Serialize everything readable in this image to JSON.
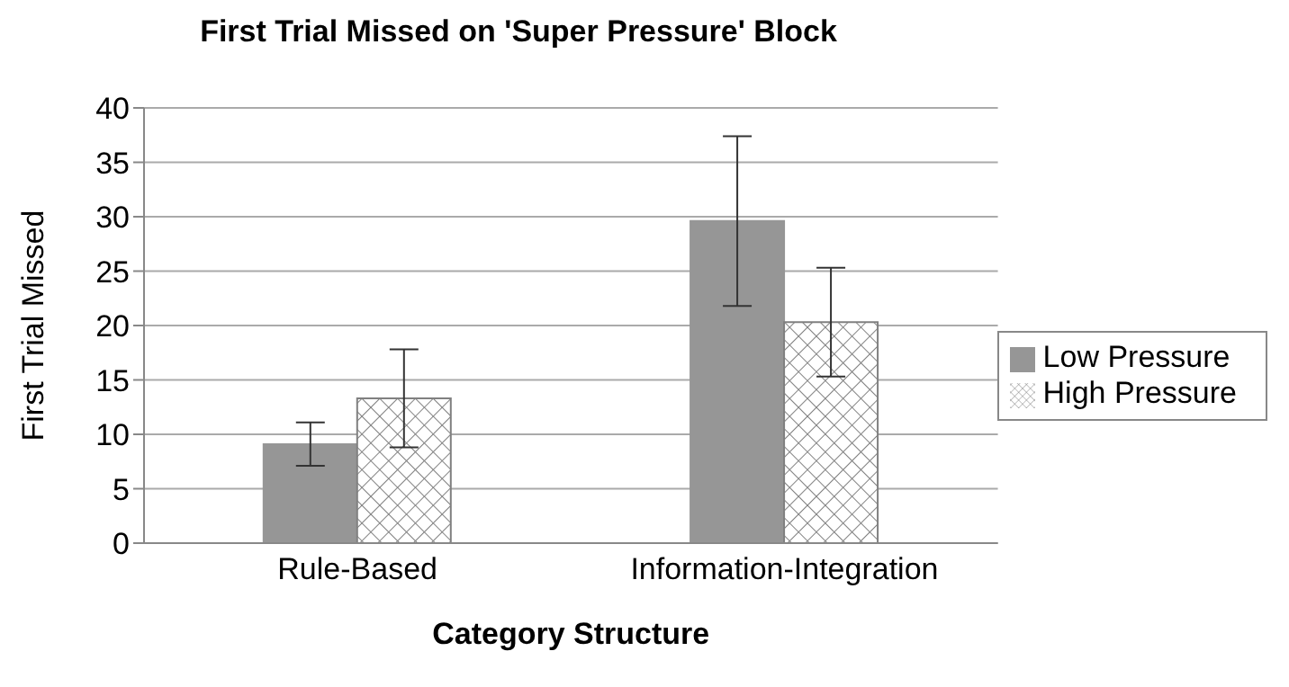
{
  "chart_data": {
    "type": "bar",
    "title": "First Trial Missed on 'Super Pressure' Block",
    "xlabel": "Category Structure",
    "ylabel": "First Trial Missed",
    "categories": [
      "Rule-Based",
      "Information-Integration"
    ],
    "series": [
      {
        "name": "Low Pressure",
        "color": "#969696",
        "values": [
          9.1,
          29.6
        ],
        "errors": [
          2,
          7.8
        ]
      },
      {
        "name": "High Pressure",
        "color": "#808080",
        "values": [
          13.3,
          20.3
        ],
        "errors": [
          4.5,
          5
        ]
      }
    ],
    "ylim": [
      0,
      40
    ],
    "yticks": [
      0,
      5,
      10,
      15,
      20,
      25,
      30,
      35,
      40
    ],
    "grid": "y",
    "legend": "right"
  }
}
